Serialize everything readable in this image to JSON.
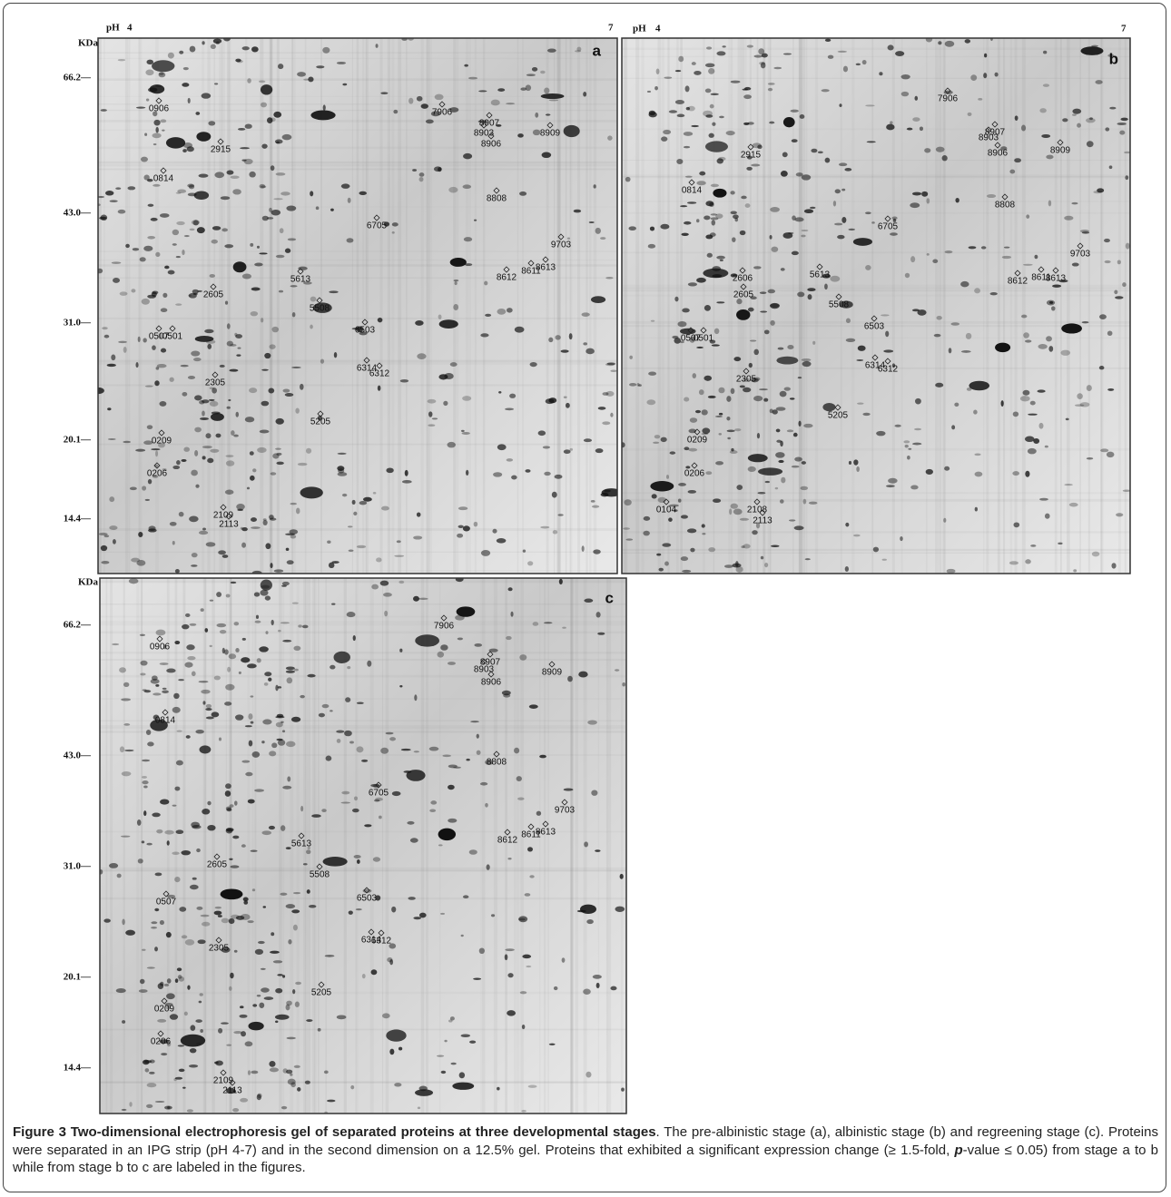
{
  "figure": {
    "panels": [
      {
        "letter": "a",
        "ph_label": "pH",
        "ph_start": "4",
        "ph_end": "7",
        "mw_unit": "KDa",
        "mw_markers": [
          "66.2—",
          "43.0—",
          "31.0—",
          "20.1—",
          "14.4—"
        ],
        "spots": [
          "0906",
          "7906",
          "8907",
          "8903",
          "8906",
          "8909",
          "2915",
          "0814",
          "8808",
          "6705",
          "9703",
          "5613",
          "8612",
          "8611",
          "8613",
          "2605",
          "5508",
          "0507",
          "0501",
          "6503",
          "6314",
          "6312",
          "2305",
          "5205",
          "0209",
          "0206",
          "2109",
          "2113"
        ]
      },
      {
        "letter": "b",
        "ph_label": "pH",
        "ph_start": "4",
        "ph_end": "7",
        "spots": [
          "7906",
          "8907",
          "8903",
          "8906",
          "8909",
          "2915",
          "0814",
          "8808",
          "6705",
          "9703",
          "5613",
          "2606",
          "2605",
          "8612",
          "8611",
          "8613",
          "5508",
          "6503",
          "0507",
          "0501",
          "6314",
          "6312",
          "2305",
          "5205",
          "0209",
          "0206",
          "0104",
          "2108",
          "2113"
        ]
      },
      {
        "letter": "c",
        "mw_unit": "KDa",
        "mw_markers": [
          "66.2—",
          "43.0—",
          "31.0—",
          "20.1—",
          "14.4—"
        ],
        "spots": [
          "7906",
          "8907",
          "8903",
          "8906",
          "8909",
          "0906",
          "0814",
          "8808",
          "6705",
          "9703",
          "5613",
          "8612",
          "8611",
          "8613",
          "2605",
          "5508",
          "0507",
          "6503",
          "6314",
          "6312",
          "2305",
          "5205",
          "0209",
          "0206",
          "2109",
          "2113"
        ]
      }
    ]
  },
  "caption": {
    "title": "Figure 3 Two-dimensional electrophoresis gel of separated proteins at three developmental stages",
    "body_before": ". The pre-albinistic stage (a), albinistic stage (b) and regreening stage (c). Proteins were separated in an IPG strip (pH 4-7) and in the second dimension on a 12.5% gel. Proteins that exhibited a significant expression change (≥ 1.5-fold, ",
    "p": "p",
    "body_after": "-value ≤ 0.05) from stage a to b while from stage b to c are labeled in the figures."
  }
}
